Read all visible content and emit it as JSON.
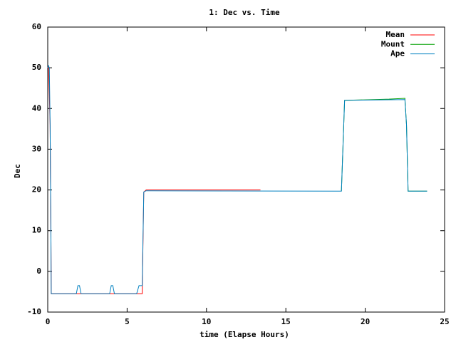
{
  "chart_data": {
    "type": "line",
    "title": "1: Dec vs. Time",
    "x_label": "time (Elapse Hours)",
    "y_label": "Dec",
    "xlim": [
      0,
      25
    ],
    "ylim": [
      -10,
      60
    ],
    "xticks": [
      0,
      5,
      10,
      15,
      20,
      25
    ],
    "yticks": [
      -10,
      0,
      10,
      20,
      30,
      40,
      50,
      60
    ],
    "legend": "top-right",
    "series": [
      {
        "name": "Mean",
        "color": "#ff0000",
        "x": [
          0,
          0.05,
          0.15,
          0.2,
          0.22,
          5.95,
          6.05,
          6.2,
          13.4
        ],
        "values": [
          50,
          50.5,
          36,
          9,
          -5.5,
          -5.5,
          19.5,
          20,
          20
        ]
      },
      {
        "name": "Mount",
        "color": "#00a000",
        "x": [
          18.5,
          18.7,
          21.5,
          22.5,
          22.6,
          22.7,
          23.9
        ],
        "values": [
          19.7,
          42,
          42.3,
          42.5,
          36,
          19.7,
          19.7
        ]
      },
      {
        "name": "Ape",
        "color": "#0080c0",
        "x": [
          0,
          0.05,
          0.1,
          0.15,
          0.2,
          0.22,
          1.8,
          1.9,
          2.0,
          2.1,
          3.9,
          4.0,
          4.1,
          4.2,
          5.6,
          5.75,
          5.95,
          6.05,
          6.2,
          18.2,
          18.5,
          18.7,
          22.5,
          22.6,
          22.7,
          23.9
        ],
        "values": [
          50,
          50.5,
          50,
          36,
          9,
          -5.5,
          -5.5,
          -3.5,
          -3.5,
          -5.5,
          -5.5,
          -3.5,
          -3.5,
          -5.5,
          -5.5,
          -3.5,
          -3.5,
          19.5,
          19.8,
          19.7,
          19.7,
          42,
          42.2,
          36,
          19.7,
          19.7
        ]
      }
    ]
  }
}
